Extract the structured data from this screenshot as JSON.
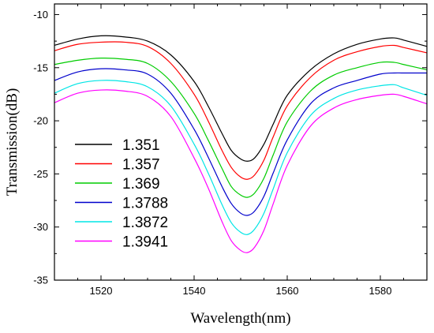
{
  "chart_data": {
    "type": "line",
    "xlabel": "Wavelength(nm)",
    "ylabel": "Transmission(dB)",
    "xlim": [
      1510,
      1590
    ],
    "ylim": [
      -35,
      -9
    ],
    "x_ticks": [
      1520,
      1540,
      1560,
      1580
    ],
    "x_tick_labels": [
      "1520",
      "1540",
      "1560",
      "1580"
    ],
    "y_ticks": [
      -35,
      -30,
      -25,
      -20,
      -15,
      -10
    ],
    "y_tick_labels": [
      "-35",
      "-30",
      "-25",
      "-20",
      "-15",
      "-10"
    ],
    "grid": false,
    "legend_position": "lower-left",
    "x": [
      1510,
      1515,
      1520,
      1525,
      1530,
      1535,
      1540,
      1543,
      1546,
      1548,
      1550,
      1551.5,
      1553,
      1555,
      1557,
      1560,
      1565,
      1570,
      1575,
      1580,
      1583,
      1585,
      1590
    ],
    "series": [
      {
        "name": "1.351",
        "color": "#000000",
        "values": [
          -12.9,
          -12.3,
          -12.0,
          -12.1,
          -12.5,
          -13.8,
          -16.3,
          -18.6,
          -21.2,
          -22.8,
          -23.6,
          -23.8,
          -23.5,
          -22.2,
          -20.3,
          -17.6,
          -15.2,
          -13.7,
          -12.8,
          -12.3,
          -12.2,
          -12.4,
          -13.0
        ]
      },
      {
        "name": "1.357",
        "color": "#ff0000",
        "values": [
          -13.4,
          -12.8,
          -12.6,
          -12.6,
          -13.0,
          -14.6,
          -17.5,
          -20.0,
          -22.8,
          -24.4,
          -25.3,
          -25.5,
          -25.1,
          -23.7,
          -21.5,
          -18.6,
          -15.9,
          -14.3,
          -13.5,
          -13.0,
          -12.9,
          -13.1,
          -13.6
        ]
      },
      {
        "name": "1.369",
        "color": "#00cc00",
        "values": [
          -14.7,
          -14.3,
          -14.1,
          -14.2,
          -14.6,
          -16.3,
          -19.3,
          -21.8,
          -24.5,
          -26.2,
          -27.0,
          -27.2,
          -26.8,
          -25.4,
          -23.2,
          -20.1,
          -17.2,
          -15.7,
          -15.0,
          -14.5,
          -14.5,
          -14.7,
          -15.2
        ]
      },
      {
        "name": "1.3788",
        "color": "#0000cc",
        "values": [
          -16.2,
          -15.4,
          -15.1,
          -15.2,
          -15.6,
          -17.4,
          -20.8,
          -23.4,
          -26.2,
          -27.8,
          -28.7,
          -28.9,
          -28.5,
          -27.1,
          -24.9,
          -21.8,
          -18.4,
          -16.9,
          -16.2,
          -15.6,
          -15.5,
          -15.5,
          -15.5
        ]
      },
      {
        "name": "1.3872",
        "color": "#00e5e5",
        "values": [
          -17.4,
          -16.5,
          -16.2,
          -16.3,
          -16.8,
          -18.6,
          -22.2,
          -24.9,
          -27.9,
          -29.6,
          -30.5,
          -30.7,
          -30.2,
          -28.7,
          -26.4,
          -23.0,
          -19.5,
          -17.9,
          -17.1,
          -16.7,
          -16.6,
          -16.9,
          -17.6
        ]
      },
      {
        "name": "1.3941",
        "color": "#ff00ff",
        "values": [
          -18.3,
          -17.4,
          -17.1,
          -17.2,
          -17.7,
          -19.6,
          -23.5,
          -26.3,
          -29.5,
          -31.3,
          -32.2,
          -32.4,
          -31.9,
          -30.3,
          -27.8,
          -24.2,
          -20.5,
          -18.8,
          -18.0,
          -17.6,
          -17.5,
          -17.7,
          -18.4
        ]
      }
    ]
  }
}
